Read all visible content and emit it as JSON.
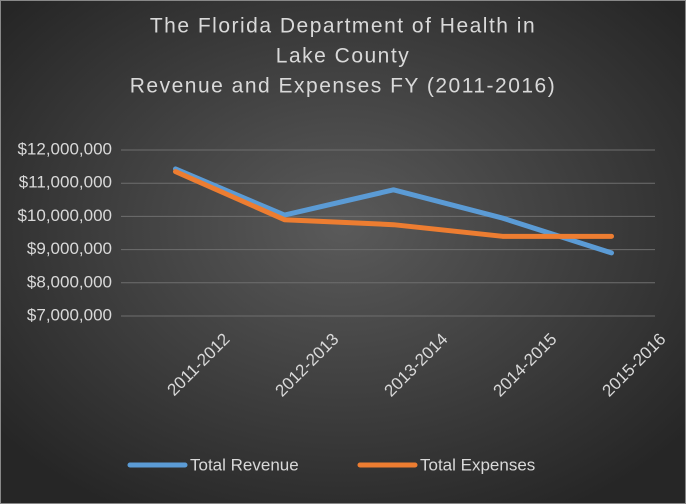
{
  "chart_data": {
    "type": "line",
    "title": [
      "The Florida Department of Health in",
      "Lake County",
      "Revenue and Expenses FY (2011-2016)"
    ],
    "categories": [
      "2011-2012",
      "2012-2013",
      "2013-2014",
      "2014-2015",
      "2015-2016"
    ],
    "series": [
      {
        "name": "Total Revenue",
        "color": "#5b9bd5",
        "values": [
          11430000,
          10040000,
          10800000,
          9950000,
          8900000
        ]
      },
      {
        "name": "Total Expenses",
        "color": "#ed7d31",
        "values": [
          11350000,
          9900000,
          9750000,
          9400000,
          9400000
        ]
      }
    ],
    "ylim": [
      7000000,
      12000000
    ],
    "yticks": [
      {
        "value": 7000000,
        "label": "$7,000,000"
      },
      {
        "value": 8000000,
        "label": "$8,000,000"
      },
      {
        "value": 9000000,
        "label": "$9,000,000"
      },
      {
        "value": 10000000,
        "label": "$10,000,000"
      },
      {
        "value": 11000000,
        "label": "$11,000,000"
      },
      {
        "value": 12000000,
        "label": "$12,000,000"
      }
    ],
    "grid": true,
    "legend": "bottom"
  }
}
